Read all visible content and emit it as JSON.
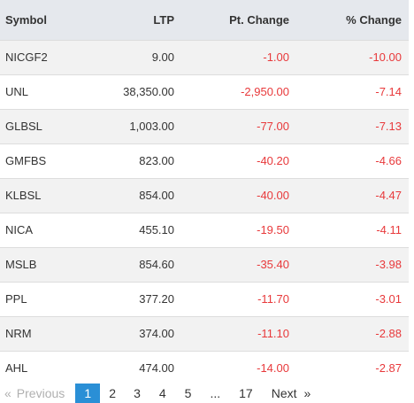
{
  "table": {
    "headers": [
      "Symbol",
      "LTP",
      "Pt. Change",
      "% Change"
    ],
    "rows": [
      [
        "NICGF2",
        "9.00",
        "-1.00",
        "-10.00"
      ],
      [
        "UNL",
        "38,350.00",
        "-2,950.00",
        "-7.14"
      ],
      [
        "GLBSL",
        "1,003.00",
        "-77.00",
        "-7.13"
      ],
      [
        "GMFBS",
        "823.00",
        "-40.20",
        "-4.66"
      ],
      [
        "KLBSL",
        "854.00",
        "-40.00",
        "-4.47"
      ],
      [
        "NICA",
        "455.10",
        "-19.50",
        "-4.11"
      ],
      [
        "MSLB",
        "854.60",
        "-35.40",
        "-3.98"
      ],
      [
        "PPL",
        "377.20",
        "-11.70",
        "-3.01"
      ],
      [
        "NRM",
        "374.00",
        "-11.10",
        "-2.88"
      ],
      [
        "AHL",
        "474.00",
        "-14.00",
        "-2.87"
      ]
    ]
  },
  "pagination": {
    "first_arrow": "«",
    "previous": "Previous",
    "pages": [
      "1",
      "2",
      "3",
      "4",
      "5"
    ],
    "ellipsis": "...",
    "last_page": "17",
    "next": "Next",
    "last_arrow": "»",
    "active_page": "1"
  },
  "colors": {
    "header_bg": "#e5e8ed",
    "stripe": "#f2f2f2",
    "negative": "#e8393b",
    "active_page": "#2a8fd6"
  }
}
